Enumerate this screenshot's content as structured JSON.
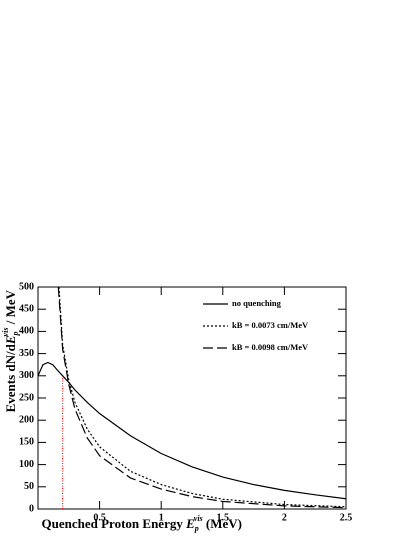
{
  "chart_data": {
    "type": "line",
    "x_label": {
      "prefix": "Quenched Proton Energy ",
      "symbol": "E",
      "sub": "p",
      "sup": "vis",
      "suffix": " (MeV)"
    },
    "y_label": {
      "prefix": "Events  dN/d",
      "symbol": "E",
      "sub": "p",
      "sup": "vis",
      "suffix": " / MeV"
    },
    "xlim": [
      0,
      2.5
    ],
    "ylim": [
      0,
      500
    ],
    "xticks": [
      0.5,
      1,
      1.5,
      2,
      2.5
    ],
    "yticks": [
      0,
      50,
      100,
      150,
      200,
      250,
      300,
      350,
      400,
      450,
      500
    ],
    "marker_line": {
      "x": 0.2,
      "top": 300,
      "color": "#ff0000"
    },
    "legend": "upper right",
    "series": [
      {
        "name": "no quenching",
        "color": "#000000",
        "dash": "solid",
        "x": [
          0,
          0.04,
          0.08,
          0.12,
          0.16,
          0.2,
          0.25,
          0.3,
          0.4,
          0.5,
          0.75,
          1.0,
          1.25,
          1.5,
          1.75,
          2.0,
          2.25,
          2.5
        ],
        "values": [
          300,
          325,
          330,
          325,
          312,
          300,
          285,
          268,
          240,
          215,
          165,
          125,
          95,
          72,
          55,
          42,
          32,
          23
        ]
      },
      {
        "name": "kB = 0.0073 cm/MeV",
        "color": "#000000",
        "dash": "dotted",
        "x": [
          0.17,
          0.2,
          0.25,
          0.3,
          0.4,
          0.5,
          0.75,
          1.0,
          1.25,
          1.5,
          2.0,
          2.5
        ],
        "values": [
          500,
          370,
          290,
          240,
          180,
          140,
          85,
          55,
          35,
          22,
          10,
          5
        ]
      },
      {
        "name": "kB = 0.0098 cm/MeV",
        "color": "#000000",
        "dash": "dashed",
        "x": [
          0.165,
          0.2,
          0.25,
          0.3,
          0.4,
          0.5,
          0.75,
          1.0,
          1.25,
          1.5,
          2.0,
          2.5
        ],
        "values": [
          500,
          360,
          280,
          225,
          160,
          120,
          70,
          45,
          28,
          17,
          7,
          3
        ]
      }
    ]
  }
}
